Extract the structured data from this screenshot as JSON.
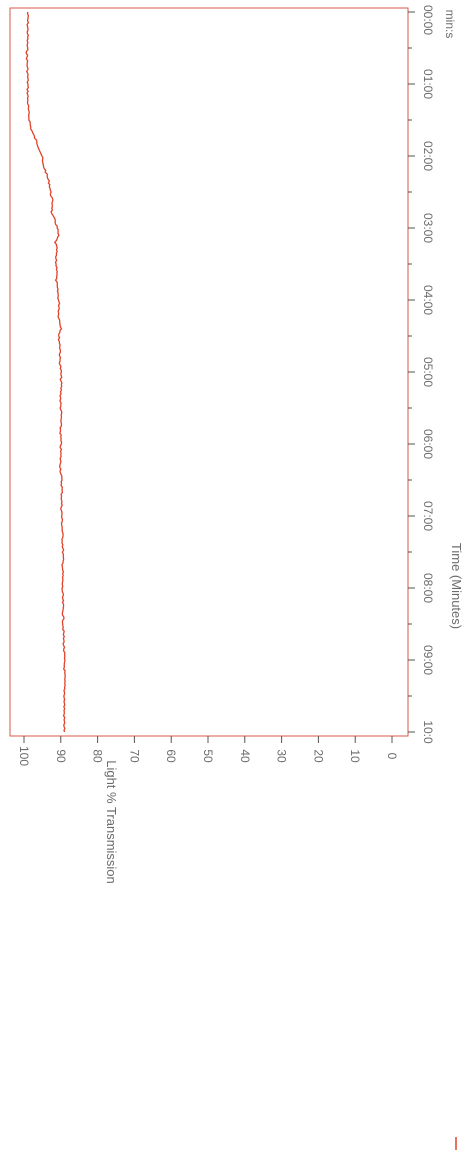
{
  "chart_data": {
    "type": "line",
    "orientation": "rotated-90-clockwise",
    "xlabel": "Time (Minutes)",
    "x_unit_label": "min:s",
    "ylabel": "Light % Transmission",
    "x_ticks": [
      "00:00",
      "01:00",
      "02:00",
      "03:00",
      "04:00",
      "05:00",
      "06:00",
      "07:00",
      "08:00",
      "09:00",
      "10:0"
    ],
    "y_ticks": [
      "100",
      "90",
      "80",
      "70",
      "60",
      "50",
      "40",
      "30",
      "20",
      "10",
      "0"
    ],
    "xlim_minutes": [
      0,
      10
    ],
    "ylim": [
      0,
      100
    ],
    "grid": false,
    "colors": {
      "series": "#e0432a",
      "frame": "#d85a4a",
      "tick": "#555555",
      "text": "#6c6c6c"
    },
    "series": [
      {
        "x_minutes": [
          0.0,
          0.3,
          0.6,
          0.9,
          1.2,
          1.4,
          1.6,
          1.7,
          1.8,
          1.9,
          2.0,
          2.1,
          2.2,
          2.3,
          2.4,
          2.5,
          2.6,
          2.7,
          2.8,
          2.9,
          3.0,
          3.1,
          3.2,
          3.3,
          3.4,
          3.5,
          3.6,
          3.7,
          3.8,
          3.9,
          4.0,
          4.1,
          4.2,
          4.3,
          4.4,
          4.5,
          4.6,
          4.7,
          4.8,
          5.0,
          5.2,
          5.4,
          5.6,
          5.8,
          6.0,
          6.3,
          6.6,
          6.9,
          7.2,
          7.5,
          7.8,
          8.0,
          8.3,
          8.6,
          8.9,
          9.2,
          9.5,
          9.8,
          10.0
        ],
        "y": [
          99.0,
          99.0,
          99.2,
          99.0,
          99.0,
          98.8,
          98.2,
          97.5,
          96.6,
          95.8,
          95.1,
          95.0,
          94.2,
          93.6,
          93.0,
          92.8,
          92.4,
          92.2,
          92.6,
          91.5,
          91.0,
          90.7,
          91.5,
          91.1,
          91.4,
          91.3,
          90.9,
          91.3,
          91.1,
          90.8,
          90.6,
          90.4,
          90.6,
          90.3,
          89.8,
          90.6,
          90.3,
          90.1,
          90.3,
          90.0,
          89.9,
          90.1,
          89.9,
          90.1,
          90.0,
          90.1,
          89.7,
          89.8,
          89.6,
          89.4,
          89.5,
          89.6,
          89.4,
          89.3,
          89.1,
          89.0,
          89.0,
          89.1,
          89.0
        ]
      }
    ]
  }
}
